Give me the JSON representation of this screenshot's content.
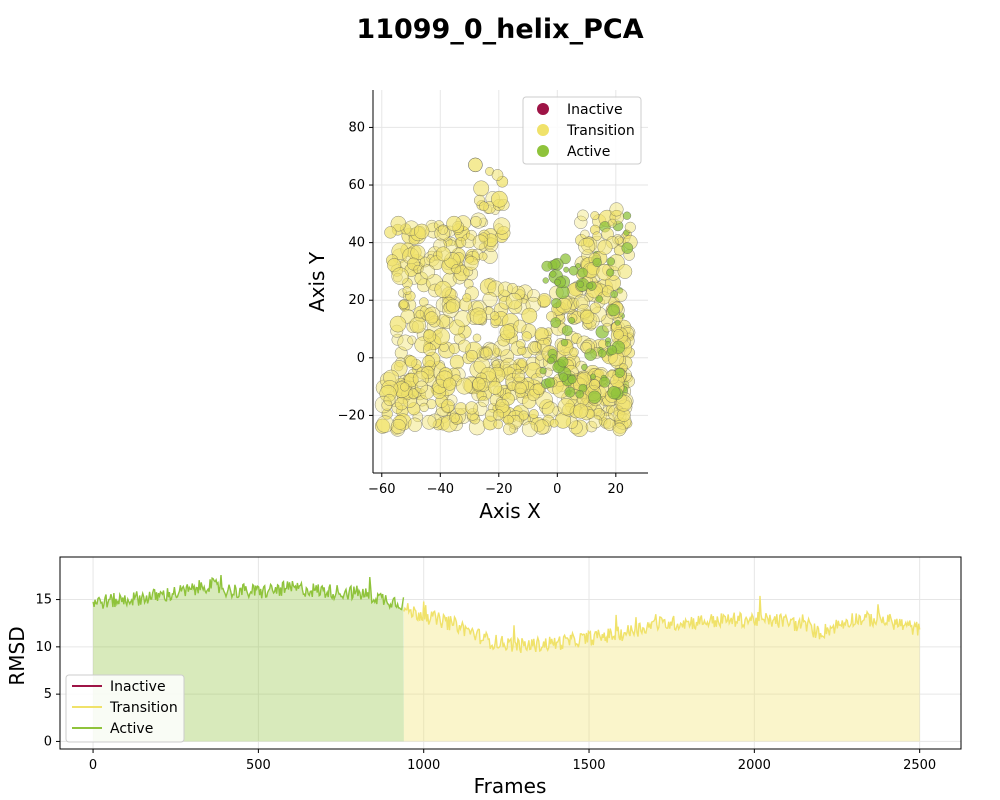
{
  "title": "11099_0_helix_PCA",
  "colors": {
    "inactive": "#9e1446",
    "transition": "#f0e26a",
    "active": "#8fc33b"
  },
  "chart_data": [
    {
      "type": "scatter",
      "xlabel": "Axis X",
      "ylabel": "Axis Y",
      "xlim": [
        -63,
        31
      ],
      "ylim": [
        -40,
        93
      ],
      "xticks": [
        -60,
        -40,
        -20,
        0,
        20
      ],
      "yticks": [
        -20,
        0,
        20,
        40,
        60,
        80
      ],
      "grid": true,
      "legend_position": "top-right",
      "legend": [
        "Inactive",
        "Transition",
        "Active"
      ],
      "clusters": [
        {
          "name": "upper-left",
          "x_range": [
            -58,
            -22
          ],
          "y_range": [
            25,
            47
          ],
          "state": "Transition"
        },
        {
          "name": "top-middle",
          "x_range": [
            -28,
            -18
          ],
          "y_range": [
            40,
            67
          ],
          "state": "Transition"
        },
        {
          "name": "middle",
          "x_range": [
            -55,
            8
          ],
          "y_range": [
            -5,
            25
          ],
          "state": "Transition"
        },
        {
          "name": "right-column",
          "x_range": [
            8,
            25
          ],
          "y_range": [
            -15,
            53
          ],
          "state": "Mixed"
        },
        {
          "name": "bottom-band",
          "x_range": [
            -60,
            25
          ],
          "y_range": [
            -25,
            -5
          ],
          "state": "Transition"
        },
        {
          "name": "active-core",
          "x_range": [
            -5,
            22
          ],
          "y_range": [
            -15,
            35
          ],
          "state": "Active"
        }
      ]
    },
    {
      "type": "line",
      "xlabel": "Frames",
      "ylabel": "RMSD",
      "xlim": [
        -100,
        2625
      ],
      "ylim": [
        -0.8,
        19.5
      ],
      "xticks": [
        0,
        500,
        1000,
        1500,
        2000,
        2500
      ],
      "yticks": [
        0,
        5,
        10,
        15
      ],
      "grid": true,
      "legend_position": "lower-left",
      "legend": [
        "Inactive",
        "Transition",
        "Active"
      ],
      "segments": [
        {
          "state": "Active",
          "x": [
            0,
            100,
            200,
            300,
            350,
            400,
            500,
            600,
            700,
            800,
            900,
            940
          ]
        },
        {
          "state": "Transition",
          "x": [
            940,
            1000,
            1100,
            1200,
            1300,
            1400,
            1500,
            1600,
            1700,
            1800,
            1900,
            2000,
            2100,
            2200,
            2300,
            2400,
            2500
          ]
        }
      ],
      "series": [
        {
          "name": "Active",
          "x": [
            0,
            100,
            200,
            300,
            350,
            400,
            500,
            600,
            700,
            800,
            900,
            940
          ],
          "values": [
            14.7,
            15.0,
            15.4,
            16.0,
            16.6,
            16.0,
            15.8,
            16.2,
            15.9,
            15.7,
            14.9,
            14.6
          ]
        },
        {
          "name": "Transition",
          "x": [
            940,
            1000,
            1100,
            1200,
            1300,
            1400,
            1500,
            1600,
            1700,
            1800,
            1900,
            2000,
            2100,
            2200,
            2300,
            2400,
            2500
          ],
          "values": [
            14.0,
            13.3,
            12.3,
            10.6,
            10.1,
            10.4,
            10.9,
            11.4,
            12.4,
            12.6,
            12.8,
            12.9,
            12.7,
            11.5,
            13.0,
            12.8,
            11.8
          ]
        }
      ]
    }
  ]
}
